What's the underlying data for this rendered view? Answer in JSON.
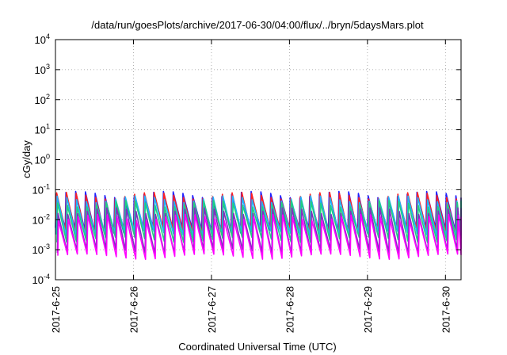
{
  "chart_data": {
    "type": "line",
    "title": "/data/run/goesPlots/archive/2017-06-30/04:00/flux/../bryn/5daysMars.plot",
    "xlabel": "Coordinated Universal Time (UTC)",
    "ylabel": "cGy/day",
    "yscale": "log",
    "ylim": [
      0.0001,
      10000
    ],
    "y_ticks": [
      {
        "base": "10",
        "exp": "-4"
      },
      {
        "base": "10",
        "exp": "-3"
      },
      {
        "base": "10",
        "exp": "-2"
      },
      {
        "base": "10",
        "exp": "-1"
      },
      {
        "base": "10",
        "exp": "0"
      },
      {
        "base": "10",
        "exp": "1"
      },
      {
        "base": "10",
        "exp": "2"
      },
      {
        "base": "10",
        "exp": "3"
      },
      {
        "base": "10",
        "exp": "4"
      }
    ],
    "x_ticks": [
      "2017-6-25",
      "2017-6-26",
      "2017-6-27",
      "2017-6-28",
      "2017-6-29",
      "2017-6-30"
    ],
    "xlim_days": [
      0,
      5.2
    ],
    "grid": true,
    "legend": "none",
    "sawtooth": {
      "period_days": 0.125,
      "lag_fraction": 0.4
    },
    "series": [
      {
        "color": "#2020ff",
        "peak": 0.07,
        "trough": 0.0045
      },
      {
        "color": "#ff2020",
        "peak": 0.065,
        "trough": 0.004
      },
      {
        "color": "#20b0ff",
        "peak": 0.05,
        "trough": 0.0035
      },
      {
        "color": "#20d080",
        "peak": 0.035,
        "trough": 0.0022
      },
      {
        "color": "#8030c0",
        "peak": 0.02,
        "trough": 0.0009
      },
      {
        "color": "#ff00ff",
        "peak": 0.012,
        "trough": 0.0006
      }
    ]
  }
}
